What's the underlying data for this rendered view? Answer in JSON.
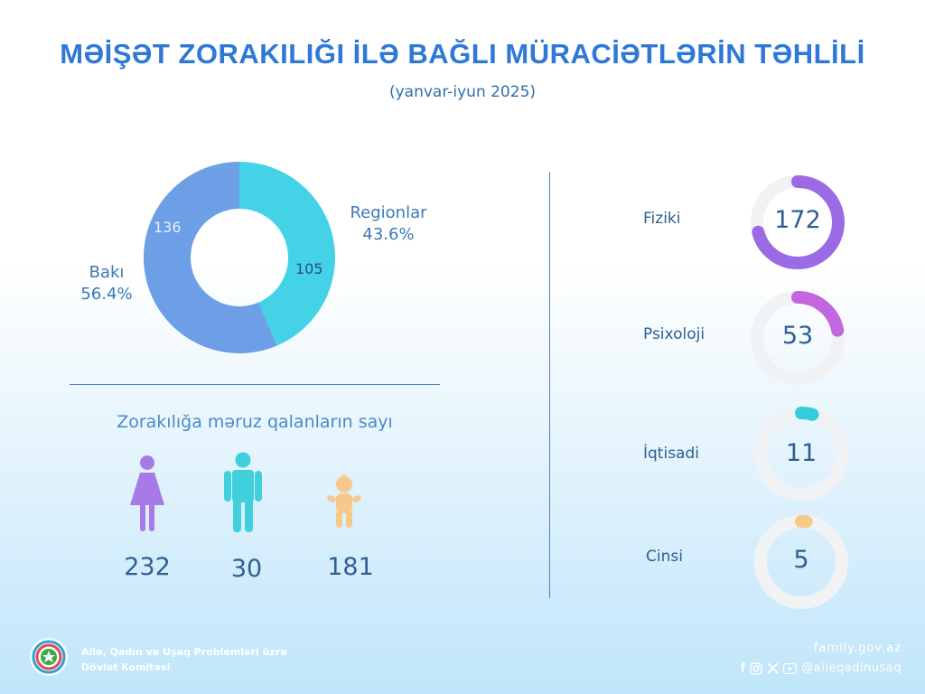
{
  "header": {
    "title": "MƏİŞƏT ZORAKILIĞI İLƏ BAĞLI MÜRACİƏTLƏRİN TƏHLİLİ",
    "subtitle": "(yanvar-iyun 2025)"
  },
  "chart_data": [
    {
      "type": "pie",
      "donut": true,
      "slices": [
        {
          "label": "Regionlar",
          "value": 105,
          "percent": "43.6%",
          "color": "#44d3e6"
        },
        {
          "label": "Bakı",
          "value": 136,
          "percent": "56.4%",
          "color": "#6d9fe6"
        }
      ]
    },
    {
      "type": "pie",
      "donut": true,
      "rings": [
        {
          "label": "Fiziki",
          "value": 172,
          "fraction": 0.71,
          "color": "#9b6be6"
        },
        {
          "label": "Psixoloji",
          "value": 53,
          "fraction": 0.22,
          "color": "#c466e0"
        },
        {
          "label": "İqtisadi",
          "value": 11,
          "fraction": 0.045,
          "color": "#34ccdc"
        },
        {
          "label": "Cinsi",
          "value": 5,
          "fraction": 0.02,
          "color": "#f6c98a"
        }
      ],
      "track_color": "#f1f2f4"
    }
  ],
  "victims": {
    "title": "Zorakılığa məruz qalanların sayı",
    "groups": [
      {
        "icon": "woman-icon",
        "value": "232",
        "color": "#a77ae8"
      },
      {
        "icon": "man-icon",
        "value": "30",
        "color": "#3fd0dc"
      },
      {
        "icon": "child-icon",
        "value": "181",
        "color": "#f6c98a"
      }
    ]
  },
  "footer": {
    "org_line1": "Ailə, Qadın və Uşaq Problemləri üzrə",
    "org_line2": "Dövlət Komitəsi",
    "website": "family.gov.az",
    "handle": "@aileqadinusaq",
    "social_icons": [
      "facebook-icon",
      "instagram-icon",
      "x-icon",
      "youtube-icon"
    ]
  }
}
